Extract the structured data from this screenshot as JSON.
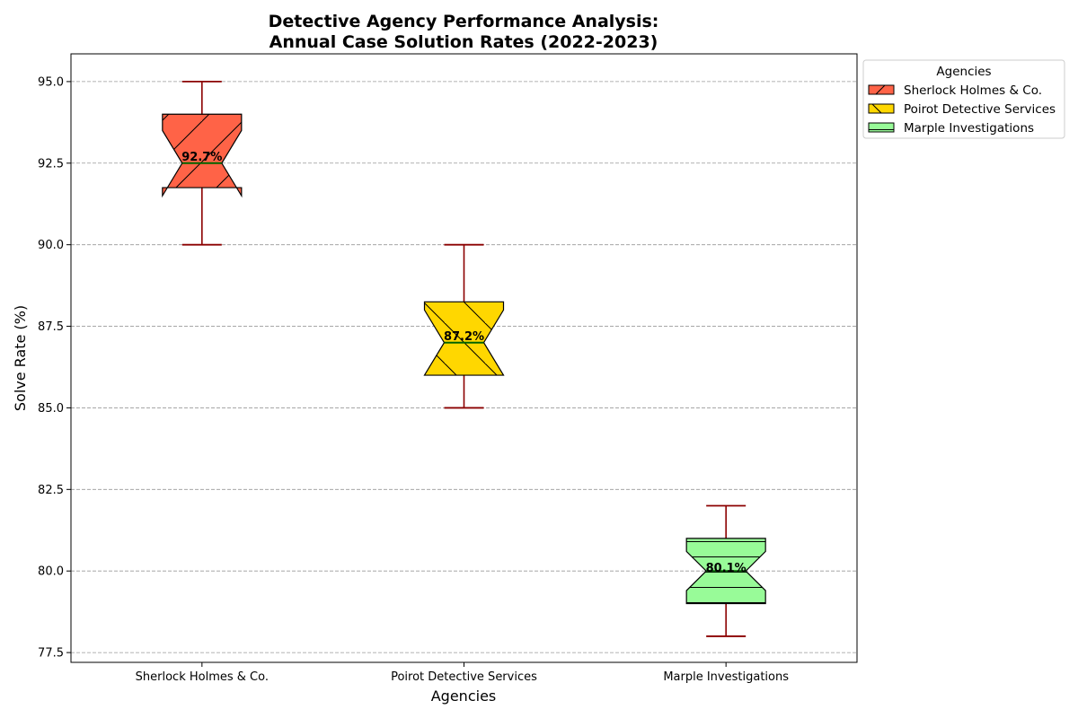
{
  "chart_data": {
    "type": "box",
    "title_line1": "Detective Agency Performance Analysis:",
    "title_line2": "Annual Case Solution Rates (2022-2023)",
    "xlabel": "Agencies",
    "ylabel": "Solve Rate (%)",
    "ylim": [
      77.2,
      95.85
    ],
    "yticks": [
      "77.5",
      "80.0",
      "82.5",
      "85.0",
      "87.5",
      "90.0",
      "92.5",
      "95.0"
    ],
    "grid": "horizontal dashed",
    "legend": {
      "title": "Agencies",
      "placement": "outside top-right"
    },
    "notched": true,
    "categories": [
      "Sherlock Holmes & Co.",
      "Poirot Detective Services",
      "Marple Investigations"
    ],
    "series": [
      {
        "name": "Sherlock Holmes & Co.",
        "min": 90.0,
        "q1": 91.75,
        "median": 92.5,
        "q3": 94.0,
        "max": 95.0,
        "notch_low": 91.5,
        "notch_high": 93.5,
        "mean_label": "92.7%",
        "mean": 92.7,
        "color": "#FF6347",
        "hatch": "/"
      },
      {
        "name": "Poirot Detective Services",
        "min": 85.0,
        "q1": 86.0,
        "median": 87.0,
        "q3": 88.25,
        "max": 90.0,
        "notch_low": 86.0,
        "notch_high": 88.0,
        "mean_label": "87.2%",
        "mean": 87.2,
        "color": "#FFD700",
        "hatch": "\\"
      },
      {
        "name": "Marple Investigations",
        "min": 78.0,
        "q1": 79.0,
        "median": 80.0,
        "q3": 81.0,
        "max": 82.0,
        "notch_low": 79.4,
        "notch_high": 80.6,
        "mean_label": "80.1%",
        "mean": 80.1,
        "color": "#98FB98",
        "hatch": "-"
      }
    ],
    "whisker_color": "#8B0000",
    "median_color": "#006400"
  }
}
